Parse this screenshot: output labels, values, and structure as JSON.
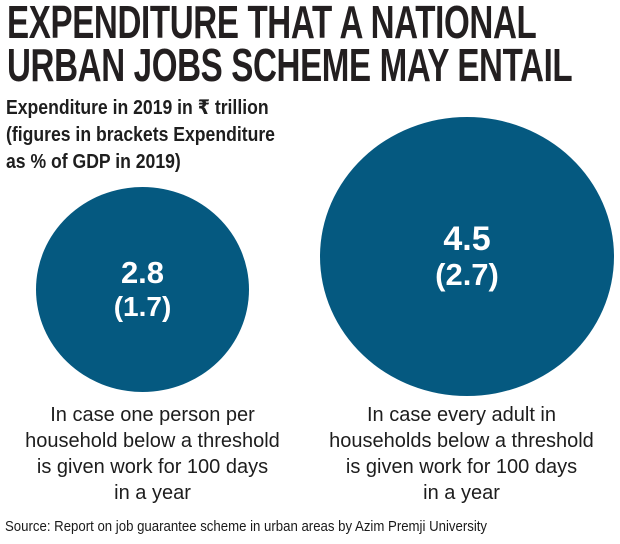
{
  "title": {
    "line1": "EXPENDITURE THAT A NATIONAL",
    "line2": "URBAN JOBS SCHEME MAY ENTAIL"
  },
  "subtitle": "Expenditure in 2019 in ₹ trillion\n(figures in brackets Expenditure\nas % of GDP in 2019)",
  "bubbles": [
    {
      "value": "2.8",
      "bracket": "(1.7)",
      "caption": "In case one person per\nhousehold below a threshold\nis given work for 100 days\nin a year"
    },
    {
      "value": "4.5",
      "bracket": "(2.7)",
      "caption": "In case every adult in\nhouseholds below a threshold\nis given work for 100 days\nin a year"
    }
  ],
  "source": "Source:  Report on job guarantee scheme in urban areas by Azim Premji University",
  "colors": {
    "bubble_fill": "#055980",
    "bubble_label": "#ffffff",
    "title_text": "#231f20",
    "body_text": "#1d1d1d",
    "background": "#ffffff"
  },
  "chart_data": {
    "type": "bubble",
    "title": "EXPENDITURE THAT A NATIONAL URBAN JOBS SCHEME MAY ENTAIL",
    "subtitle": "Expenditure in 2019 in ₹ trillion (figures in brackets Expenditure as % of GDP in 2019)",
    "unit": "₹ trillion, 2019",
    "categories": [
      "In case one person per household below a threshold is given work for 100 days in a year",
      "In case every adult in households below a threshold is given work for 100 days in a year"
    ],
    "series": [
      {
        "name": "Expenditure in 2019 (₹ trillion)",
        "values": [
          2.8,
          4.5
        ]
      },
      {
        "name": "Expenditure as % of GDP in 2019",
        "values": [
          1.7,
          2.7
        ]
      }
    ],
    "layout_hints": {
      "representation": "area-proportional circles",
      "legend": "none",
      "grid": false,
      "value_labels_inside_bubbles": true
    },
    "source": "Report on job guarantee scheme in urban areas by Azim Premji University"
  }
}
